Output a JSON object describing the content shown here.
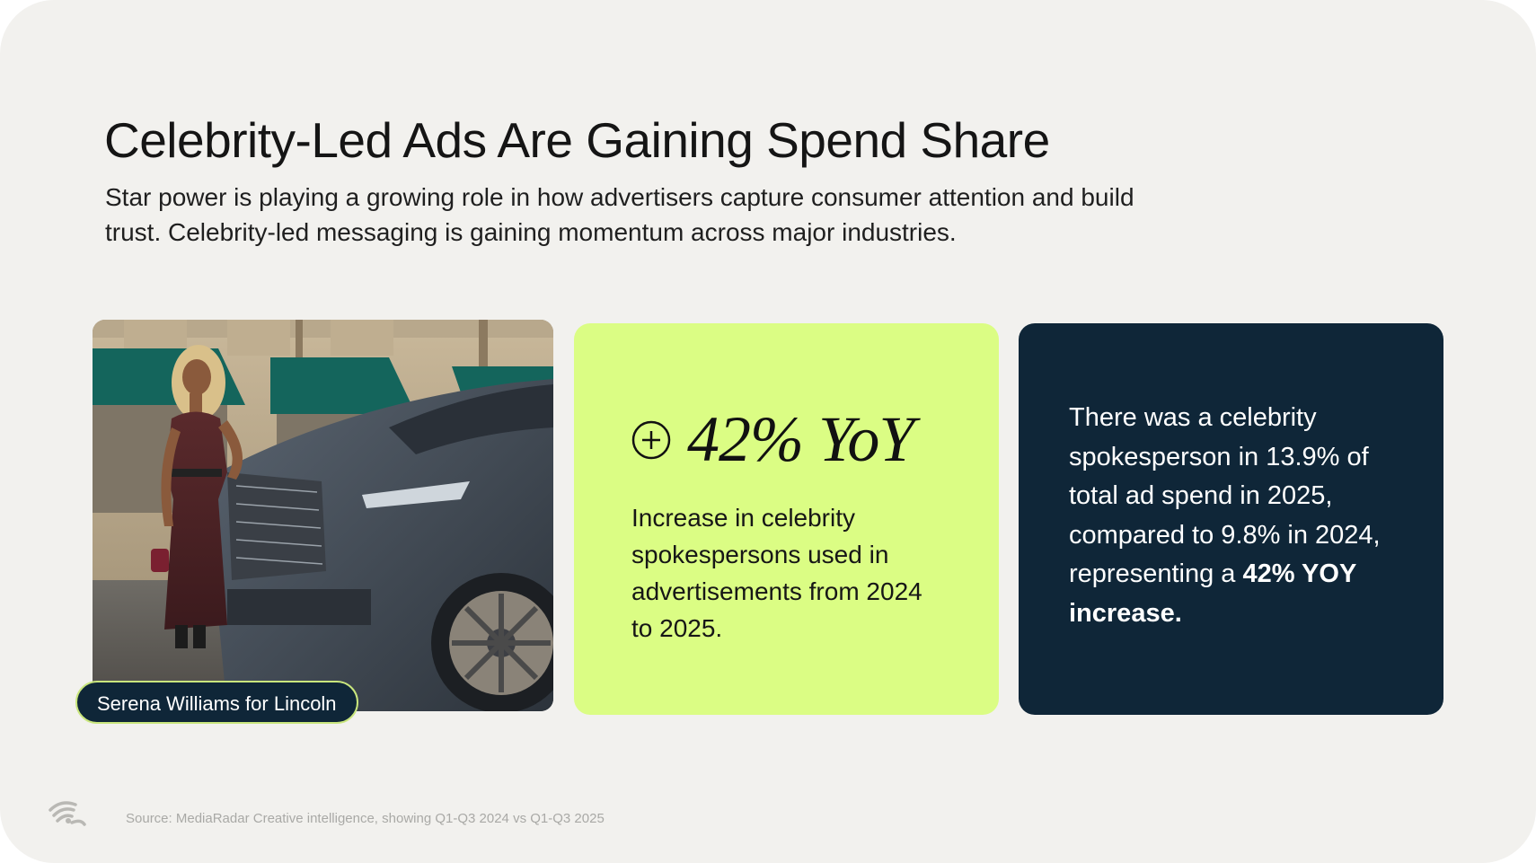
{
  "slide": {
    "title": "Celebrity-Led Ads Are Gaining Spend Share",
    "subtitle": "Star power is playing a growing role in how advertisers capture consumer attention and build trust. Celebrity-led messaging is gaining momentum across major industries."
  },
  "photo_card": {
    "caption": "Serena Williams for Lincoln",
    "image_description": "photo"
  },
  "stat_card": {
    "icon": "plus-circle-icon",
    "value": "42% YoY",
    "description": "Increase in celebrity spokespersons used in advertisements from 2024 to 2025."
  },
  "info_card": {
    "text": "There was a celebrity spokesperson in 13.9% of total ad spend in 2025, compared to 9.8% in 2024, representing a",
    "highlight": "42% YOY increase."
  },
  "footer": {
    "logo_icon": "radar-waves-icon",
    "source": "Source: MediaRadar Creative intelligence, showing Q1-Q3 2024 vs Q1-Q3 2025"
  },
  "colors": {
    "background": "#f2f1ee",
    "accent_green": "#dbfd84",
    "navy": "#0f2638",
    "pill_border": "#c9e67d"
  }
}
